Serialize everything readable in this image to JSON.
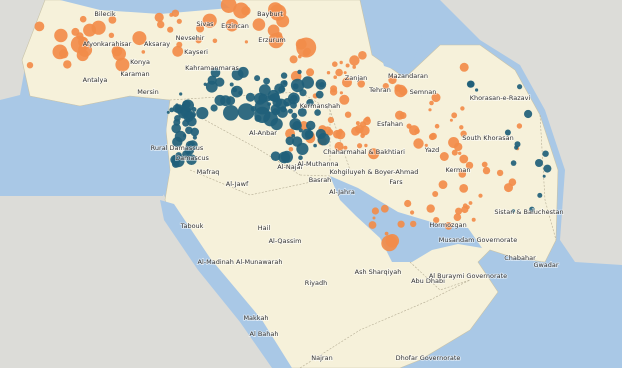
{
  "map": {
    "labels": [
      "Bilecik",
      "Sivas",
      "Erzincan",
      "Bayburt",
      "Afyonkarahisar",
      "Aksaray",
      "Nevsehir",
      "Kayseri",
      "Erzurum",
      "Konya",
      "Karaman",
      "Antalya",
      "Mersin",
      "Kahramanmaras",
      "Rural Damascus",
      "Damascus",
      "Mafraq",
      "Al-Anbar",
      "Al-Najaf",
      "Al-Muthanna",
      "Al-Jawf",
      "Basrah",
      "Al-Jahra",
      "Tabouk",
      "Hail",
      "Al-Qassim",
      "Al-Madinah Al-Munawarah",
      "Riyadh",
      "Makkah",
      "Al Bahah",
      "Najran",
      "Ash Sharqiyah",
      "Abu Dhabi",
      "Musandam Governorate",
      "Al Buraymi Governorate",
      "Dhofar Governorate",
      "Zanjan",
      "Tehran",
      "Mazandaran",
      "Semnan",
      "Khorasan-e-Razavi",
      "South Khorasan",
      "Kermanshah",
      "Esfahan",
      "Yazd",
      "Chaharmahal & Bakhtiari",
      "Kohgiluyeh & Boyer-Ahmad",
      "Fars",
      "Kerman",
      "Hormozgan",
      "Sistan & Baluchestan",
      "Chabahar",
      "Gwadar"
    ]
  }
}
